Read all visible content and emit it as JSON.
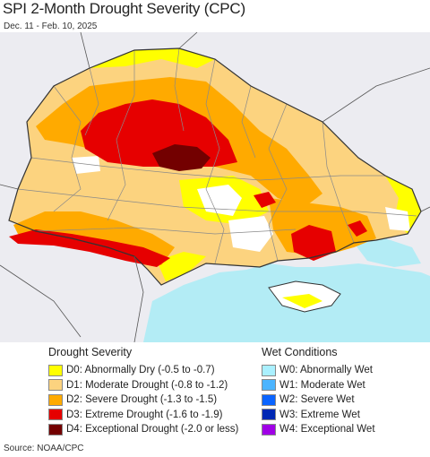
{
  "header": {
    "title": "SPI 2-Month Drought Severity (CPC)",
    "date_range": "Dec. 11 - Feb. 10, 2025"
  },
  "legend": {
    "drought": {
      "heading": "Drought Severity",
      "items": [
        {
          "code": "D0",
          "label": "D0: Abnormally Dry (-0.5 to -0.7)",
          "color": "#ffff00"
        },
        {
          "code": "D1",
          "label": "D1: Moderate Drought (-0.8 to -1.2)",
          "color": "#fcd37f"
        },
        {
          "code": "D2",
          "label": "D2: Severe Drought (-1.3 to -1.5)",
          "color": "#ffaa00"
        },
        {
          "code": "D3",
          "label": "D3: Extreme Drought (-1.6 to -1.9)",
          "color": "#e60000"
        },
        {
          "code": "D4",
          "label": "D4: Exceptional Drought (-2.0 or less)",
          "color": "#730000"
        }
      ]
    },
    "wet": {
      "heading": "Wet Conditions",
      "items": [
        {
          "code": "W0",
          "label": "W0: Abnormally Wet",
          "color": "#aaf0ff"
        },
        {
          "code": "W1",
          "label": "W1: Moderate Wet",
          "color": "#4bb4ff"
        },
        {
          "code": "W2",
          "label": "W2: Severe Wet",
          "color": "#0a64ff"
        },
        {
          "code": "W3",
          "label": "W3: Extreme Wet",
          "color": "#0028b4"
        },
        {
          "code": "W4",
          "label": "W4: Exceptional Wet",
          "color": "#a000e6"
        }
      ]
    }
  },
  "map": {
    "colors": {
      "background_land": "#ececf1",
      "sea": "#b3ecf5",
      "no_drought": "#ffffff",
      "borders": "#8a8a8a",
      "country_borders": "#333333"
    }
  },
  "footer": {
    "source": "Source: NOAA/CPC"
  }
}
